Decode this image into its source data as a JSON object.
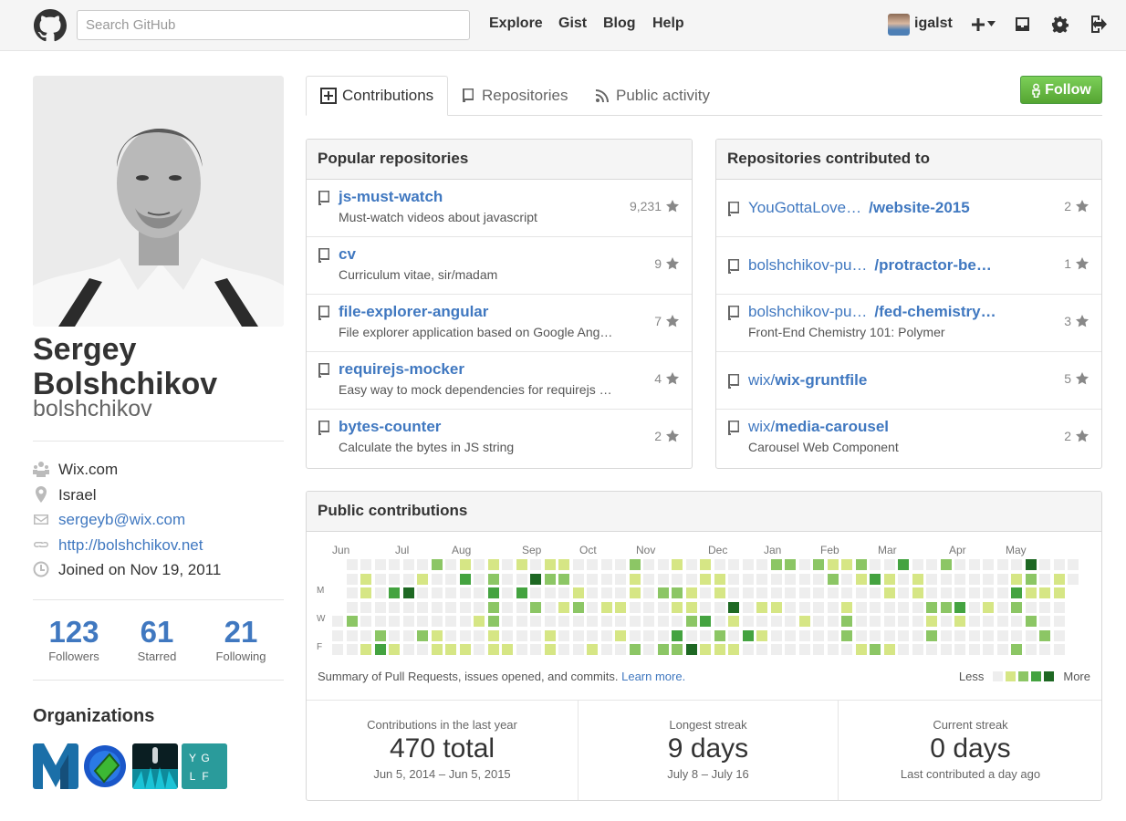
{
  "header": {
    "search_placeholder": "Search GitHub",
    "nav": [
      "Explore",
      "Gist",
      "Blog",
      "Help"
    ],
    "username": "igalst",
    "icons": [
      "octocat-logo-icon",
      "plus-icon",
      "chevron-down-icon",
      "inbox-icon",
      "gear-icon",
      "sign-out-icon"
    ]
  },
  "profile": {
    "fullname_line1": "Sergey",
    "fullname_line2": "Bolshchikov",
    "login": "bolshchikov",
    "details": [
      {
        "icon": "organization-icon",
        "text": "Wix.com",
        "link": false
      },
      {
        "icon": "location-icon",
        "text": "Israel",
        "link": false
      },
      {
        "icon": "mail-icon",
        "text": "sergeyb@wix.com",
        "link": true
      },
      {
        "icon": "link-icon",
        "text": "http://bolshchikov.net",
        "link": true
      },
      {
        "icon": "clock-icon",
        "text": "Joined on Nov 19, 2011",
        "link": false
      }
    ],
    "stats": [
      {
        "num": "123",
        "label": "Followers"
      },
      {
        "num": "61",
        "label": "Starred"
      },
      {
        "num": "21",
        "label": "Following"
      }
    ],
    "orgs_title": "Organizations",
    "orgs": [
      {
        "text": "M",
        "color": "#1b6fa8"
      },
      {
        "text": "",
        "color": "#1a57c9"
      },
      {
        "text": "",
        "color": "#0a3d47"
      },
      {
        "text": "Y G L F",
        "color": "#2a9b9b"
      }
    ]
  },
  "tabs": [
    "Contributions",
    "Repositories",
    "Public activity"
  ],
  "follow_label": "Follow",
  "popular": {
    "title": "Popular repositories",
    "repos": [
      {
        "name": "js-must-watch",
        "desc": "Must-watch videos about javascript",
        "stars": "9,231"
      },
      {
        "name": "cv",
        "desc": "Curriculum vitae, sir/madam",
        "stars": "9"
      },
      {
        "name": "file-explorer-angular",
        "desc": "File explorer application based on Google Ang…",
        "stars": "7"
      },
      {
        "name": "requirejs-mocker",
        "desc": "Easy way to mock dependencies for requirejs …",
        "stars": "4"
      },
      {
        "name": "bytes-counter",
        "desc": "Calculate the bytes in JS string",
        "stars": "2"
      }
    ]
  },
  "contributed": {
    "title": "Repositories contributed to",
    "repos": [
      {
        "owner": "YouGottaLove…",
        "name": "/website-2015",
        "desc": "",
        "stars": "2"
      },
      {
        "owner": "bolshchikov-pu…",
        "name": "/protractor-be…",
        "desc": "",
        "stars": "1"
      },
      {
        "owner": "bolshchikov-pu…",
        "name": "/fed-chemistry…",
        "desc": "Front-End Chemistry 101: Polymer",
        "stars": "3"
      },
      {
        "owner": "wix/",
        "name": "wix-gruntfile",
        "desc": "",
        "stars": "5"
      },
      {
        "owner": "wix/",
        "name": "media-carousel",
        "desc": "Carousel Web Component",
        "stars": "2"
      }
    ]
  },
  "contributions": {
    "title": "Public contributions",
    "months": [
      "Jun",
      "Jul",
      "Aug",
      "Sep",
      "Oct",
      "Nov",
      "Dec",
      "Jan",
      "Feb",
      "Mar",
      "Apr",
      "May"
    ],
    "day_labels": [
      "M",
      "W",
      "F"
    ],
    "colors": [
      "#eeeeee",
      "#d6e685",
      "#8cc665",
      "#44a340",
      "#1e6823"
    ],
    "summary": "Summary of Pull Requests, issues opened, and commits.",
    "learn_more": "Learn more.",
    "legend_less": "Less",
    "legend_more": "More",
    "stats": [
      {
        "title": "Contributions in the last year",
        "value": "470 total",
        "sub": "Jun 5, 2014 – Jun 5, 2015"
      },
      {
        "title": "Longest streak",
        "value": "9 days",
        "sub": "July 8 – July 16"
      },
      {
        "title": "Current streak",
        "value": "0 days",
        "sub": "Last contributed a day ago"
      }
    ]
  }
}
